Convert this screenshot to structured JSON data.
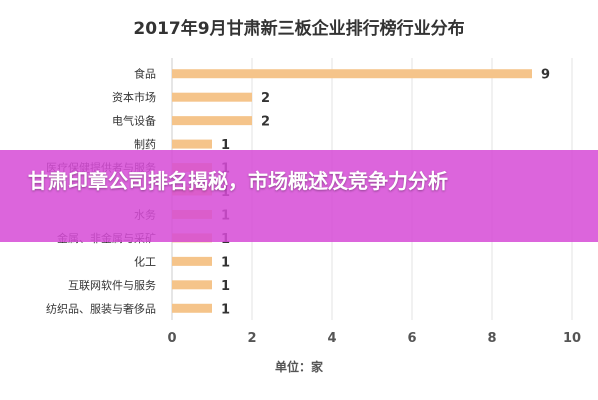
{
  "chart_data": {
    "type": "bar",
    "orientation": "horizontal",
    "title": "2017年9月甘肃新三板企业排行榜行业分布",
    "xlabel": "单位：家",
    "ylabel": "",
    "xlim": [
      0,
      10
    ],
    "xticks": [
      0,
      2,
      4,
      6,
      8,
      10
    ],
    "grid": true,
    "categories": [
      "食品",
      "资本市场",
      "电气设备",
      "制药",
      "医疗保健提供者与服务",
      "",
      "水务",
      "金属、非金属与采矿",
      "化工",
      "互联网软件与服务",
      "纺织品、服装与奢侈品"
    ],
    "values": [
      9,
      2,
      2,
      1,
      1,
      1,
      1,
      1,
      1,
      1,
      1
    ],
    "bar_color": "#F5C48A"
  },
  "overlay": {
    "headline": "甘肃印章公司排名揭秘，市场概述及竞争力分析",
    "color": "#D64CD6"
  }
}
